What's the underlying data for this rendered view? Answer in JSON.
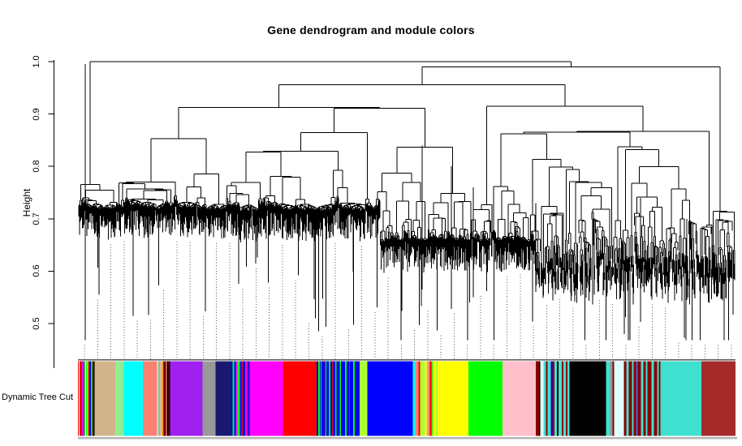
{
  "title": "Gene dendrogram and module colors",
  "y_axis": {
    "label": "Height",
    "tick_labels": [
      "1.0",
      "0.9",
      "0.8",
      "0.7",
      "0.6",
      "0.5"
    ]
  },
  "color_bar": {
    "label": "Dynamic Tree Cut"
  },
  "chart_data": {
    "type": "dendrogram",
    "title": "Gene dendrogram and module colors",
    "ylabel": "Height",
    "ylim": [
      0.47,
      1.0
    ],
    "yticks": [
      1.0,
      0.9,
      0.8,
      0.7,
      0.6,
      0.5
    ],
    "grid": "vertical dotted guide lines",
    "guide_line_count": 50,
    "row_label": "Dynamic Tree Cut",
    "legend_position": "none",
    "palette": {
      "red": "#FF0000",
      "white": "#FFFFFF",
      "brown": "#A52A2A",
      "magenta": "#FF00FF",
      "purple": "#A020F0",
      "green": "#00FF00",
      "yellow": "#FFFF00",
      "darkgreen": "#006400",
      "blue": "#0000FF",
      "orange": "#FFA500",
      "black": "#000000",
      "tan": "#D2B48C",
      "lightgreen": "#90EE90",
      "cyan": "#00FFFF",
      "salmon": "#FA8072",
      "darkseagreen": "#8FBC8F",
      "pink": "#FFC0CB",
      "darkred": "#8B0000",
      "grey60": "#999999",
      "midnightblue": "#191970",
      "greenyellow": "#ADFF2F",
      "lightcyan": "#E0FFFF",
      "turquoise": "#40E0D0",
      "royalblue": "#4169E1"
    },
    "module_segments": [
      [
        "red",
        1.2
      ],
      [
        "white",
        0.6
      ],
      [
        "brown",
        1.2
      ],
      [
        "red",
        1
      ],
      [
        "brown",
        0.8
      ],
      [
        "magenta",
        1.2
      ],
      [
        "purple",
        2
      ],
      [
        "green",
        1.2
      ],
      [
        "white",
        1
      ],
      [
        "green",
        1.2
      ],
      [
        "yellow",
        1.2
      ],
      [
        "red",
        0.8
      ],
      [
        "darkgreen",
        1.2
      ],
      [
        "blue",
        1.2
      ],
      [
        "green",
        1.2
      ],
      [
        "orange",
        0.8
      ],
      [
        "darkgreen",
        1.2
      ],
      [
        "black",
        1.5
      ],
      [
        "tan",
        25.7
      ],
      [
        "lightgreen",
        10.5
      ],
      [
        "cyan",
        23.5
      ],
      [
        "salmon",
        17.7
      ],
      [
        "white",
        1
      ],
      [
        "darkseagreen",
        3
      ],
      [
        "pink",
        1
      ],
      [
        "salmon",
        1
      ],
      [
        "yellow",
        1
      ],
      [
        "red",
        2
      ],
      [
        "black",
        1.3
      ],
      [
        "salmon",
        1.5
      ],
      [
        "black",
        2
      ],
      [
        "darkred",
        1
      ],
      [
        "black",
        1.2
      ],
      [
        "purple",
        40.3
      ],
      [
        "grey60",
        16
      ],
      [
        "midnightblue",
        19
      ],
      [
        "blue",
        2
      ],
      [
        "green",
        2
      ],
      [
        "blue",
        2
      ],
      [
        "magenta",
        2
      ],
      [
        "green",
        3
      ],
      [
        "blue",
        2
      ],
      [
        "red",
        1.5
      ],
      [
        "blue",
        3
      ],
      [
        "magenta",
        2
      ],
      [
        "red",
        1.5
      ],
      [
        "blue",
        2
      ],
      [
        "magenta",
        41
      ],
      [
        "red",
        42
      ],
      [
        "blue",
        2
      ],
      [
        "green",
        2
      ],
      [
        "blue",
        1
      ],
      [
        "green",
        1
      ],
      [
        "blue",
        4
      ],
      [
        "darkred",
        1
      ],
      [
        "green",
        1
      ],
      [
        "blue",
        3
      ],
      [
        "green",
        2
      ],
      [
        "blue",
        2
      ],
      [
        "red",
        1
      ],
      [
        "blue",
        3
      ],
      [
        "green",
        1.5
      ],
      [
        "blue",
        4
      ],
      [
        "green",
        1.5
      ],
      [
        "blue",
        5
      ],
      [
        "green",
        2
      ],
      [
        "blue",
        3
      ],
      [
        "red",
        1
      ],
      [
        "blue",
        4
      ],
      [
        "green",
        2
      ],
      [
        "blue",
        6
      ],
      [
        "greenyellow",
        9.5
      ],
      [
        "blue",
        56
      ],
      [
        "cyan",
        3
      ],
      [
        "salmon",
        4
      ],
      [
        "red",
        2
      ],
      [
        "greenyellow",
        6
      ],
      [
        "yellow",
        2
      ],
      [
        "tan",
        2
      ],
      [
        "salmon",
        2
      ],
      [
        "red",
        2
      ],
      [
        "green",
        2
      ],
      [
        "yellow",
        4
      ],
      [
        "greenyellow",
        2
      ],
      [
        "yellow",
        38
      ],
      [
        "green",
        42
      ],
      [
        "pink",
        41
      ],
      [
        "darkred",
        4
      ],
      [
        "black",
        1.5
      ],
      [
        "lightcyan",
        4
      ],
      [
        "turquoise",
        3
      ],
      [
        "darkred",
        2
      ],
      [
        "turquoise",
        4
      ],
      [
        "blue",
        2
      ],
      [
        "darkred",
        3
      ],
      [
        "turquoise",
        3
      ],
      [
        "black",
        2
      ],
      [
        "turquoise",
        4
      ],
      [
        "darkred",
        2
      ],
      [
        "turquoise",
        3
      ],
      [
        "darkred",
        2
      ],
      [
        "turquoise",
        2.5
      ],
      [
        "black",
        45
      ],
      [
        "turquoise",
        5
      ],
      [
        "grey60",
        3
      ],
      [
        "darkred",
        2
      ],
      [
        "lightcyan",
        12
      ],
      [
        "darkred",
        3
      ],
      [
        "turquoise",
        3
      ],
      [
        "darkred",
        4
      ],
      [
        "turquoise",
        2
      ],
      [
        "darkred",
        3
      ],
      [
        "royalblue",
        2
      ],
      [
        "darkred",
        4
      ],
      [
        "turquoise",
        3
      ],
      [
        "darkred",
        3
      ],
      [
        "turquoise",
        2
      ],
      [
        "darkred",
        5
      ],
      [
        "turquoise",
        3
      ],
      [
        "darkred",
        4
      ],
      [
        "turquoise",
        2
      ],
      [
        "darkred",
        2
      ],
      [
        "turquoise",
        51
      ],
      [
        "brown",
        42
      ]
    ]
  }
}
